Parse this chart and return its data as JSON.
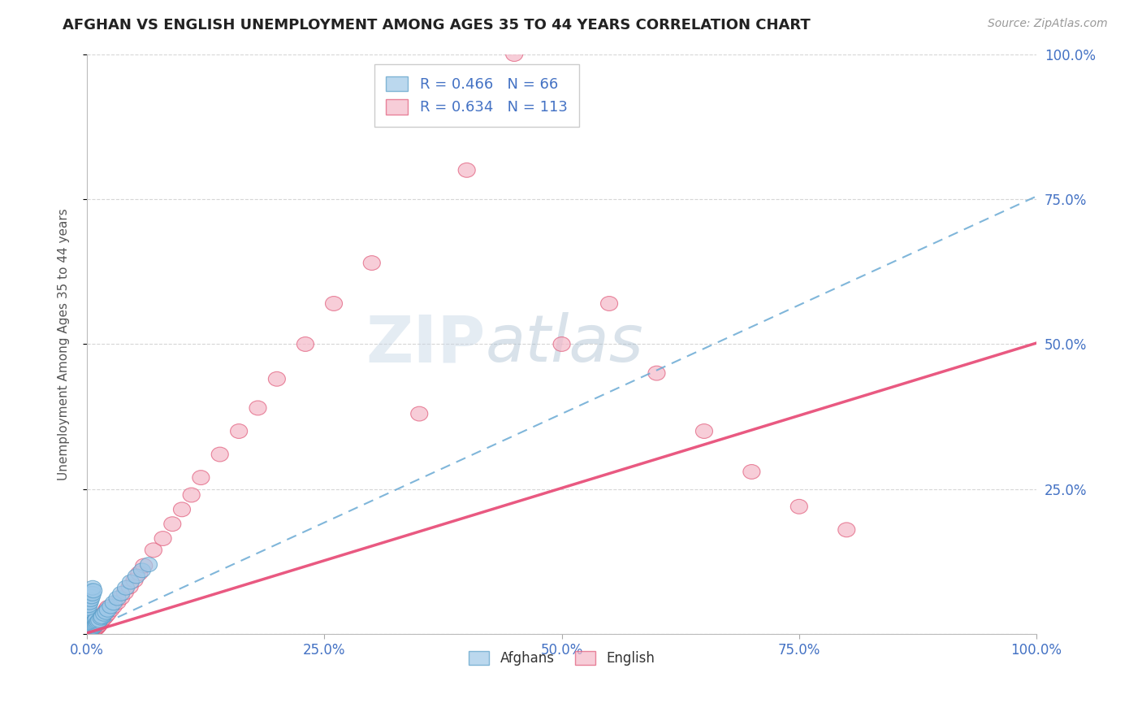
{
  "title": "AFGHAN VS ENGLISH UNEMPLOYMENT AMONG AGES 35 TO 44 YEARS CORRELATION CHART",
  "source": "Source: ZipAtlas.com",
  "ylabel": "Unemployment Among Ages 35 to 44 years",
  "xlim": [
    0,
    1
  ],
  "ylim": [
    0,
    1
  ],
  "xticks": [
    0.0,
    0.25,
    0.5,
    0.75,
    1.0
  ],
  "xticklabels": [
    "0.0%",
    "25.0%",
    "50.0%",
    "75.0%",
    "100.0%"
  ],
  "ytick_positions": [
    0.0,
    0.25,
    0.5,
    0.75,
    1.0
  ],
  "ytick_labels_left": [
    "",
    "",
    "",
    "",
    ""
  ],
  "ytick_labels_right": [
    "",
    "25.0%",
    "50.0%",
    "75.0%",
    "100.0%"
  ],
  "afghan_color": "#9ec8e8",
  "afghan_edge_color": "#5a9ec8",
  "english_color": "#f5b8c8",
  "english_edge_color": "#e05878",
  "afghan_line_color": "#6aaad4",
  "english_line_color": "#e8507a",
  "background_color": "#ffffff",
  "grid_color": "#cccccc",
  "title_color": "#222222",
  "axis_label_color": "#555555",
  "tick_label_color": "#4472c4",
  "source_color": "#999999",
  "watermark_color": "#d0dce8",
  "legend_text_color": "#4472c4",
  "bottom_legend_color": "#333333",
  "afghan_line_slope": 0.75,
  "afghan_line_intercept": 0.005,
  "english_line_slope": 0.5,
  "english_line_intercept": 0.002,
  "afghan_x": [
    0.001,
    0.001,
    0.001,
    0.001,
    0.001,
    0.001,
    0.001,
    0.002,
    0.002,
    0.002,
    0.002,
    0.002,
    0.002,
    0.003,
    0.003,
    0.003,
    0.003,
    0.003,
    0.004,
    0.004,
    0.004,
    0.004,
    0.005,
    0.005,
    0.005,
    0.005,
    0.006,
    0.006,
    0.007,
    0.007,
    0.008,
    0.008,
    0.009,
    0.009,
    0.01,
    0.01,
    0.011,
    0.012,
    0.013,
    0.015,
    0.016,
    0.018,
    0.02,
    0.022,
    0.025,
    0.028,
    0.032,
    0.036,
    0.041,
    0.046,
    0.052,
    0.058,
    0.065,
    0.001,
    0.001,
    0.002,
    0.002,
    0.003,
    0.003,
    0.004,
    0.004,
    0.005,
    0.005,
    0.006,
    0.006,
    0.007
  ],
  "afghan_y": [
    0.01,
    0.015,
    0.02,
    0.025,
    0.03,
    0.035,
    0.04,
    0.01,
    0.015,
    0.02,
    0.025,
    0.03,
    0.035,
    0.01,
    0.015,
    0.02,
    0.025,
    0.03,
    0.01,
    0.015,
    0.02,
    0.025,
    0.01,
    0.015,
    0.02,
    0.025,
    0.012,
    0.018,
    0.013,
    0.02,
    0.015,
    0.022,
    0.016,
    0.024,
    0.018,
    0.026,
    0.02,
    0.022,
    0.024,
    0.028,
    0.03,
    0.035,
    0.038,
    0.042,
    0.048,
    0.054,
    0.062,
    0.07,
    0.08,
    0.09,
    0.1,
    0.11,
    0.12,
    0.045,
    0.055,
    0.05,
    0.06,
    0.055,
    0.065,
    0.06,
    0.07,
    0.065,
    0.075,
    0.07,
    0.08,
    0.075
  ],
  "english_x": [
    0.001,
    0.001,
    0.001,
    0.001,
    0.001,
    0.001,
    0.001,
    0.001,
    0.001,
    0.001,
    0.001,
    0.001,
    0.001,
    0.001,
    0.001,
    0.002,
    0.002,
    0.002,
    0.002,
    0.002,
    0.002,
    0.002,
    0.002,
    0.002,
    0.002,
    0.003,
    0.003,
    0.003,
    0.003,
    0.003,
    0.003,
    0.004,
    0.004,
    0.004,
    0.004,
    0.005,
    0.005,
    0.005,
    0.005,
    0.006,
    0.006,
    0.006,
    0.007,
    0.007,
    0.008,
    0.008,
    0.009,
    0.009,
    0.01,
    0.01,
    0.011,
    0.012,
    0.013,
    0.014,
    0.015,
    0.016,
    0.018,
    0.02,
    0.022,
    0.025,
    0.028,
    0.032,
    0.036,
    0.04,
    0.045,
    0.05,
    0.055,
    0.06,
    0.07,
    0.08,
    0.09,
    0.1,
    0.11,
    0.12,
    0.14,
    0.16,
    0.18,
    0.2,
    0.23,
    0.26,
    0.3,
    0.35,
    0.4,
    0.45,
    0.5,
    0.55,
    0.6,
    0.65,
    0.7,
    0.75,
    0.8,
    0.001,
    0.002,
    0.003,
    0.004,
    0.005,
    0.006,
    0.007,
    0.008,
    0.009,
    0.01,
    0.011,
    0.012,
    0.013,
    0.014,
    0.015,
    0.016,
    0.017,
    0.018,
    0.019,
    0.02,
    0.021,
    0.022
  ],
  "english_y": [
    0.002,
    0.004,
    0.006,
    0.008,
    0.01,
    0.012,
    0.014,
    0.016,
    0.018,
    0.02,
    0.022,
    0.024,
    0.026,
    0.028,
    0.03,
    0.003,
    0.006,
    0.009,
    0.012,
    0.015,
    0.018,
    0.021,
    0.024,
    0.027,
    0.03,
    0.004,
    0.008,
    0.012,
    0.016,
    0.02,
    0.024,
    0.005,
    0.01,
    0.015,
    0.02,
    0.006,
    0.011,
    0.016,
    0.021,
    0.007,
    0.013,
    0.019,
    0.008,
    0.015,
    0.009,
    0.016,
    0.01,
    0.018,
    0.011,
    0.02,
    0.013,
    0.015,
    0.017,
    0.02,
    0.022,
    0.025,
    0.028,
    0.032,
    0.036,
    0.042,
    0.048,
    0.055,
    0.063,
    0.072,
    0.082,
    0.093,
    0.105,
    0.118,
    0.145,
    0.165,
    0.19,
    0.215,
    0.24,
    0.27,
    0.31,
    0.35,
    0.39,
    0.44,
    0.5,
    0.57,
    0.64,
    0.38,
    0.8,
    1.0,
    0.5,
    0.57,
    0.45,
    0.35,
    0.28,
    0.22,
    0.18,
    0.001,
    0.003,
    0.005,
    0.007,
    0.009,
    0.011,
    0.013,
    0.015,
    0.017,
    0.019,
    0.021,
    0.023,
    0.025,
    0.027,
    0.029,
    0.031,
    0.033,
    0.035,
    0.037,
    0.04,
    0.043,
    0.046
  ]
}
